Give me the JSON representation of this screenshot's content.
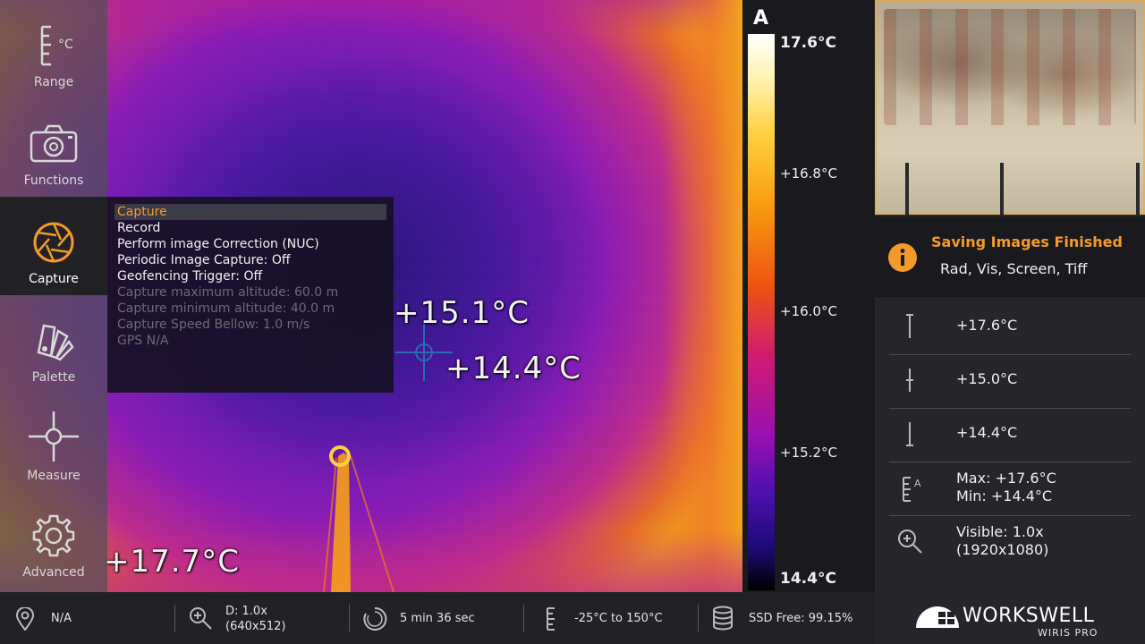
{
  "sidebar": {
    "items": [
      {
        "label": "Range",
        "icon": "range-scale-icon",
        "unit": "°C"
      },
      {
        "label": "Functions",
        "icon": "camera-icon"
      },
      {
        "label": "Capture",
        "icon": "aperture-icon",
        "active": true
      },
      {
        "label": "Palette",
        "icon": "palette-swatch-icon"
      },
      {
        "label": "Measure",
        "icon": "crosshair-icon"
      },
      {
        "label": "Advanced",
        "icon": "gear-icon"
      }
    ]
  },
  "capture_menu": {
    "items": [
      {
        "label": "Capture",
        "selected": true,
        "enabled": true
      },
      {
        "label": "Record",
        "enabled": true
      },
      {
        "label": "Perform image Correction (NUC)",
        "enabled": true
      },
      {
        "label": "Periodic Image Capture: Off",
        "enabled": true
      },
      {
        "label": "Geofencing Trigger: Off",
        "enabled": true
      },
      {
        "label": "Capture maximum altitude: 60.0 m",
        "enabled": false
      },
      {
        "label": "Capture minimum altitude: 40.0 m",
        "enabled": false
      },
      {
        "label": "Capture Speed Bellow: 1.0 m/s",
        "enabled": false
      },
      {
        "label": "GPS N/A",
        "enabled": false
      }
    ]
  },
  "thermal": {
    "spot_labels": {
      "spot1": "+15.1°C",
      "spot2": "+14.4°C",
      "spot3": "+17.7°C"
    }
  },
  "scale": {
    "mode": "A",
    "max": "17.6°C",
    "marks": [
      "+16.8°C",
      "+16.0°C",
      "+15.2°C"
    ],
    "min": "14.4°C"
  },
  "notification": {
    "title": "Saving Images Finished",
    "detail": "Rad, Vis, Screen, Tiff",
    "icon": "info-icon",
    "accent": "#f39a2a"
  },
  "readings": {
    "max_marker": "+17.6°C",
    "mid_marker": "+15.0°C",
    "min_marker": "+14.4°C",
    "range_max": "Max: +17.6°C",
    "range_min": "Min: +14.4°C",
    "zoom_visible": "Visible: 1.0x",
    "zoom_resolution": "(1920x1080)"
  },
  "status_bar": {
    "gps": "N/A",
    "digital_zoom": "D: 1.0x",
    "digital_res": "(640x512)",
    "timer": "5 min 36 sec",
    "temp_range": "-25°C to 150°C",
    "ssd": "SSD Free: 99.15%"
  },
  "brand": {
    "name": "WORKSWELL",
    "product": "WIRIS PRO"
  }
}
